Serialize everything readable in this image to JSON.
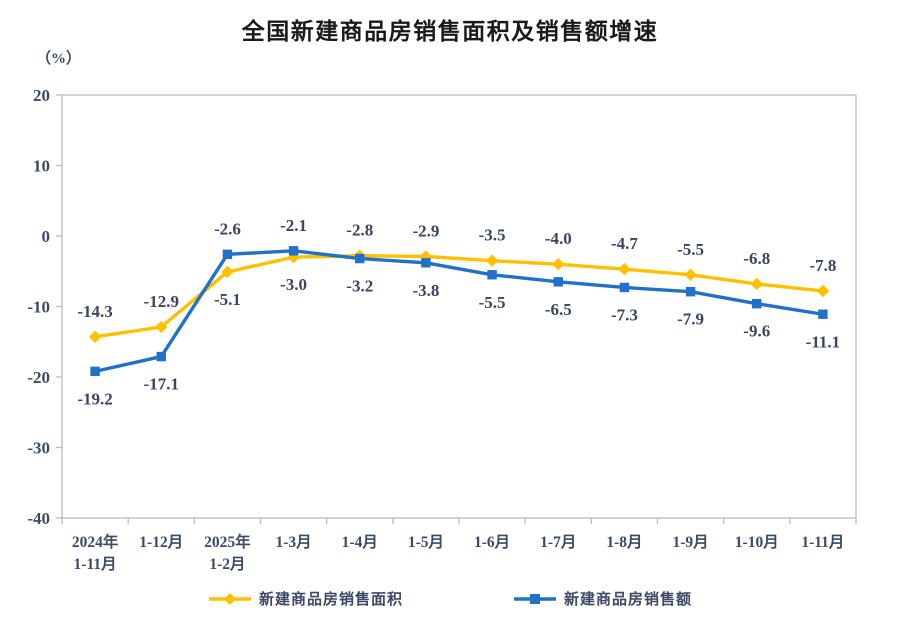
{
  "chart_data": {
    "type": "line",
    "title": "全国新建商品房销售面积及销售额增速",
    "unit_label": "（%）",
    "categories": [
      [
        "2024年",
        "1-11月"
      ],
      [
        "1-12月"
      ],
      [
        "2025年",
        "1-2月"
      ],
      [
        "1-3月"
      ],
      [
        "1-4月"
      ],
      [
        "1-5月"
      ],
      [
        "1-6月"
      ],
      [
        "1-7月"
      ],
      [
        "1-8月"
      ],
      [
        "1-9月"
      ],
      [
        "1-10月"
      ],
      [
        "1-11月"
      ]
    ],
    "series": [
      {
        "name": "新建商品房销售面积",
        "color": "#FFC000",
        "marker": "diamond",
        "values": [
          -14.3,
          -12.9,
          -5.1,
          -3.0,
          -2.8,
          -2.9,
          -3.5,
          -4.0,
          -4.7,
          -5.5,
          -6.8,
          -7.8
        ]
      },
      {
        "name": "新建商品房销售额",
        "color": "#2170C9",
        "marker": "square",
        "values": [
          -19.2,
          -17.1,
          -2.6,
          -2.1,
          -3.2,
          -3.8,
          -5.5,
          -6.5,
          -7.3,
          -7.9,
          -9.6,
          -11.1
        ]
      }
    ],
    "ylim": [
      -40,
      20
    ],
    "ytick_step": 10,
    "grid": false,
    "legend_position": "bottom",
    "axis_color": "#bdbdbd",
    "text_color": "#3d4a66",
    "title_color": "#1a1a1a",
    "data_label_color": "#3a4560"
  }
}
